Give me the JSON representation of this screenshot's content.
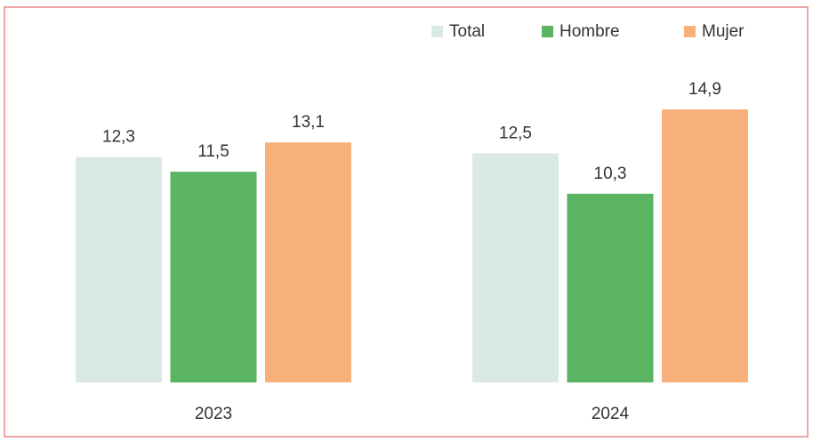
{
  "chart_data": {
    "type": "bar",
    "categories": [
      "2023",
      "2024"
    ],
    "series": [
      {
        "name": "Total",
        "color": "#dbe9e6",
        "values": [
          12.3,
          12.5
        ],
        "value_labels": [
          "12,3",
          "12,5"
        ]
      },
      {
        "name": "Hombre",
        "color": "#5bb462",
        "values": [
          11.5,
          10.3
        ],
        "value_labels": [
          "11,5",
          "10,3"
        ]
      },
      {
        "name": "Mujer",
        "color": "#f8b07a",
        "values": [
          13.1,
          14.9
        ],
        "value_labels": [
          "13,1",
          "14,9"
        ]
      }
    ],
    "legend": "top-right"
  }
}
